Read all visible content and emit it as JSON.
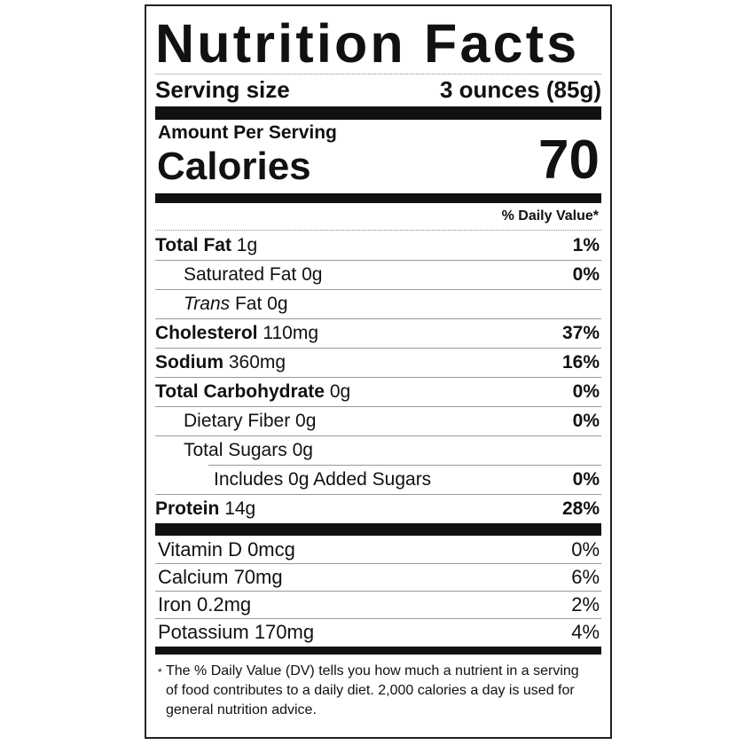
{
  "title": "Nutrition Facts",
  "serving": {
    "label": "Serving size",
    "value": "3 ounces (85g)"
  },
  "amount_per_serving": "Amount Per Serving",
  "calories": {
    "label": "Calories",
    "value": "70"
  },
  "daily_value_header": "% Daily Value*",
  "nutrients": [
    {
      "name": "Total Fat",
      "amount": "1g",
      "dv": "1%"
    },
    {
      "name": "Saturated Fat",
      "amount": "0g",
      "dv": "0%"
    },
    {
      "name_italic": "Trans",
      "name": "Fat",
      "amount": "0g",
      "dv": ""
    },
    {
      "name": "Cholesterol",
      "amount": "110mg",
      "dv": "37%"
    },
    {
      "name": "Sodium",
      "amount": "360mg",
      "dv": "16%"
    },
    {
      "name": "Total Carbohydrate",
      "amount": "0g",
      "dv": "0%"
    },
    {
      "name": "Dietary Fiber",
      "amount": "0g",
      "dv": "0%"
    },
    {
      "name": "Total Sugars",
      "amount": "0g",
      "dv": ""
    },
    {
      "name": "Includes 0g Added Sugars",
      "dv": "0%"
    },
    {
      "name": "Protein",
      "amount": "14g",
      "dv": "28%"
    }
  ],
  "vitamins": [
    {
      "label": "Vitamin D 0mcg",
      "dv": "0%"
    },
    {
      "label": "Calcium 70mg",
      "dv": "6%"
    },
    {
      "label": "Iron 0.2mg",
      "dv": "2%"
    },
    {
      "label": "Potassium 170mg",
      "dv": "4%"
    }
  ],
  "footnote": {
    "star": "*",
    "text": "The % Daily Value (DV) tells you how much a nutrient in a serving of food contributes to a daily diet. 2,000 calories a day is used for general nutrition advice."
  }
}
